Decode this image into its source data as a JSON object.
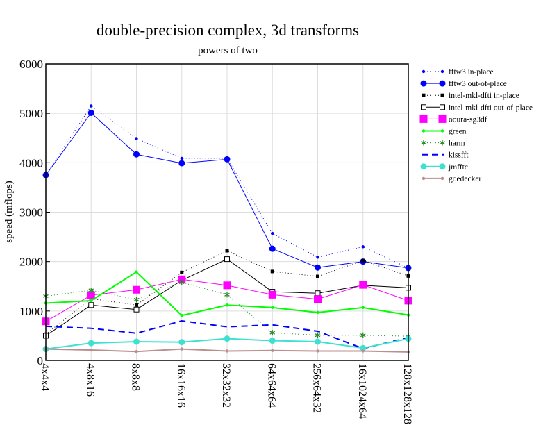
{
  "chart_data": {
    "type": "line",
    "title": "double-precision complex, 3d transforms",
    "subtitle": "powers of two",
    "xlabel": "",
    "ylabel": "speed (mflops)",
    "ylim": [
      0,
      6000
    ],
    "yticks": [
      0,
      1000,
      2000,
      3000,
      4000,
      5000,
      6000
    ],
    "grid": true,
    "legend_position": "right",
    "categories": [
      "4x4x4",
      "4x8x16",
      "8x8x8",
      "16x16x16",
      "32x32x32",
      "64x64x64",
      "256x64x32",
      "16x1024x64",
      "128x128x128"
    ],
    "series": [
      {
        "name": "fftw3 in-place",
        "color": "#0000ff",
        "dash": "1,3",
        "marker": "dot",
        "values": [
          3760,
          5150,
          4490,
          4090,
          4090,
          2570,
          2090,
          2300,
          1870
        ]
      },
      {
        "name": "fftw3 out-of-place",
        "color": "#0000ff",
        "dash": "",
        "marker": "circle",
        "values": [
          3750,
          5010,
          4170,
          3990,
          4070,
          2260,
          1880,
          2000,
          1870
        ]
      },
      {
        "name": "intel-mkl-dfti in-place",
        "color": "#000000",
        "dash": "1,3",
        "marker": "square-filled",
        "values": [
          530,
          1250,
          1120,
          1780,
          2220,
          1800,
          1700,
          2020,
          1710
        ]
      },
      {
        "name": "intel-mkl-dfti out-of-place",
        "color": "#000000",
        "dash": "",
        "marker": "square-open",
        "values": [
          500,
          1120,
          1030,
          1620,
          2050,
          1390,
          1360,
          1520,
          1470
        ]
      },
      {
        "name": "ooura-sg3df",
        "color": "#ff00ff",
        "dash": "",
        "marker": "square-big",
        "values": [
          790,
          1320,
          1430,
          1640,
          1520,
          1330,
          1240,
          1530,
          1210
        ]
      },
      {
        "name": "green",
        "color": "#00ff00",
        "dash": "",
        "marker": "dot",
        "width": 2,
        "values": [
          1160,
          1210,
          1790,
          910,
          1120,
          1070,
          970,
          1070,
          920
        ]
      },
      {
        "name": "harm",
        "color": "#228b22",
        "dash": "1,3",
        "marker": "asterisk",
        "values": [
          1300,
          1420,
          1230,
          1580,
          1330,
          560,
          510,
          510,
          490
        ]
      },
      {
        "name": "kissfft",
        "color": "#0000ff",
        "dash": "9,6",
        "marker": "none",
        "width": 2,
        "values": [
          690,
          650,
          550,
          800,
          680,
          720,
          590,
          240,
          460
        ]
      },
      {
        "name": "jmfftc",
        "color": "#40e0d0",
        "dash": "",
        "marker": "circle",
        "width": 2,
        "values": [
          230,
          350,
          380,
          370,
          440,
          400,
          380,
          250,
          440
        ]
      },
      {
        "name": "goedecker",
        "color": "#bc8f8f",
        "dash": "",
        "marker": "dot",
        "width": 2,
        "values": [
          230,
          210,
          180,
          230,
          190,
          200,
          190,
          190,
          170
        ]
      }
    ]
  }
}
